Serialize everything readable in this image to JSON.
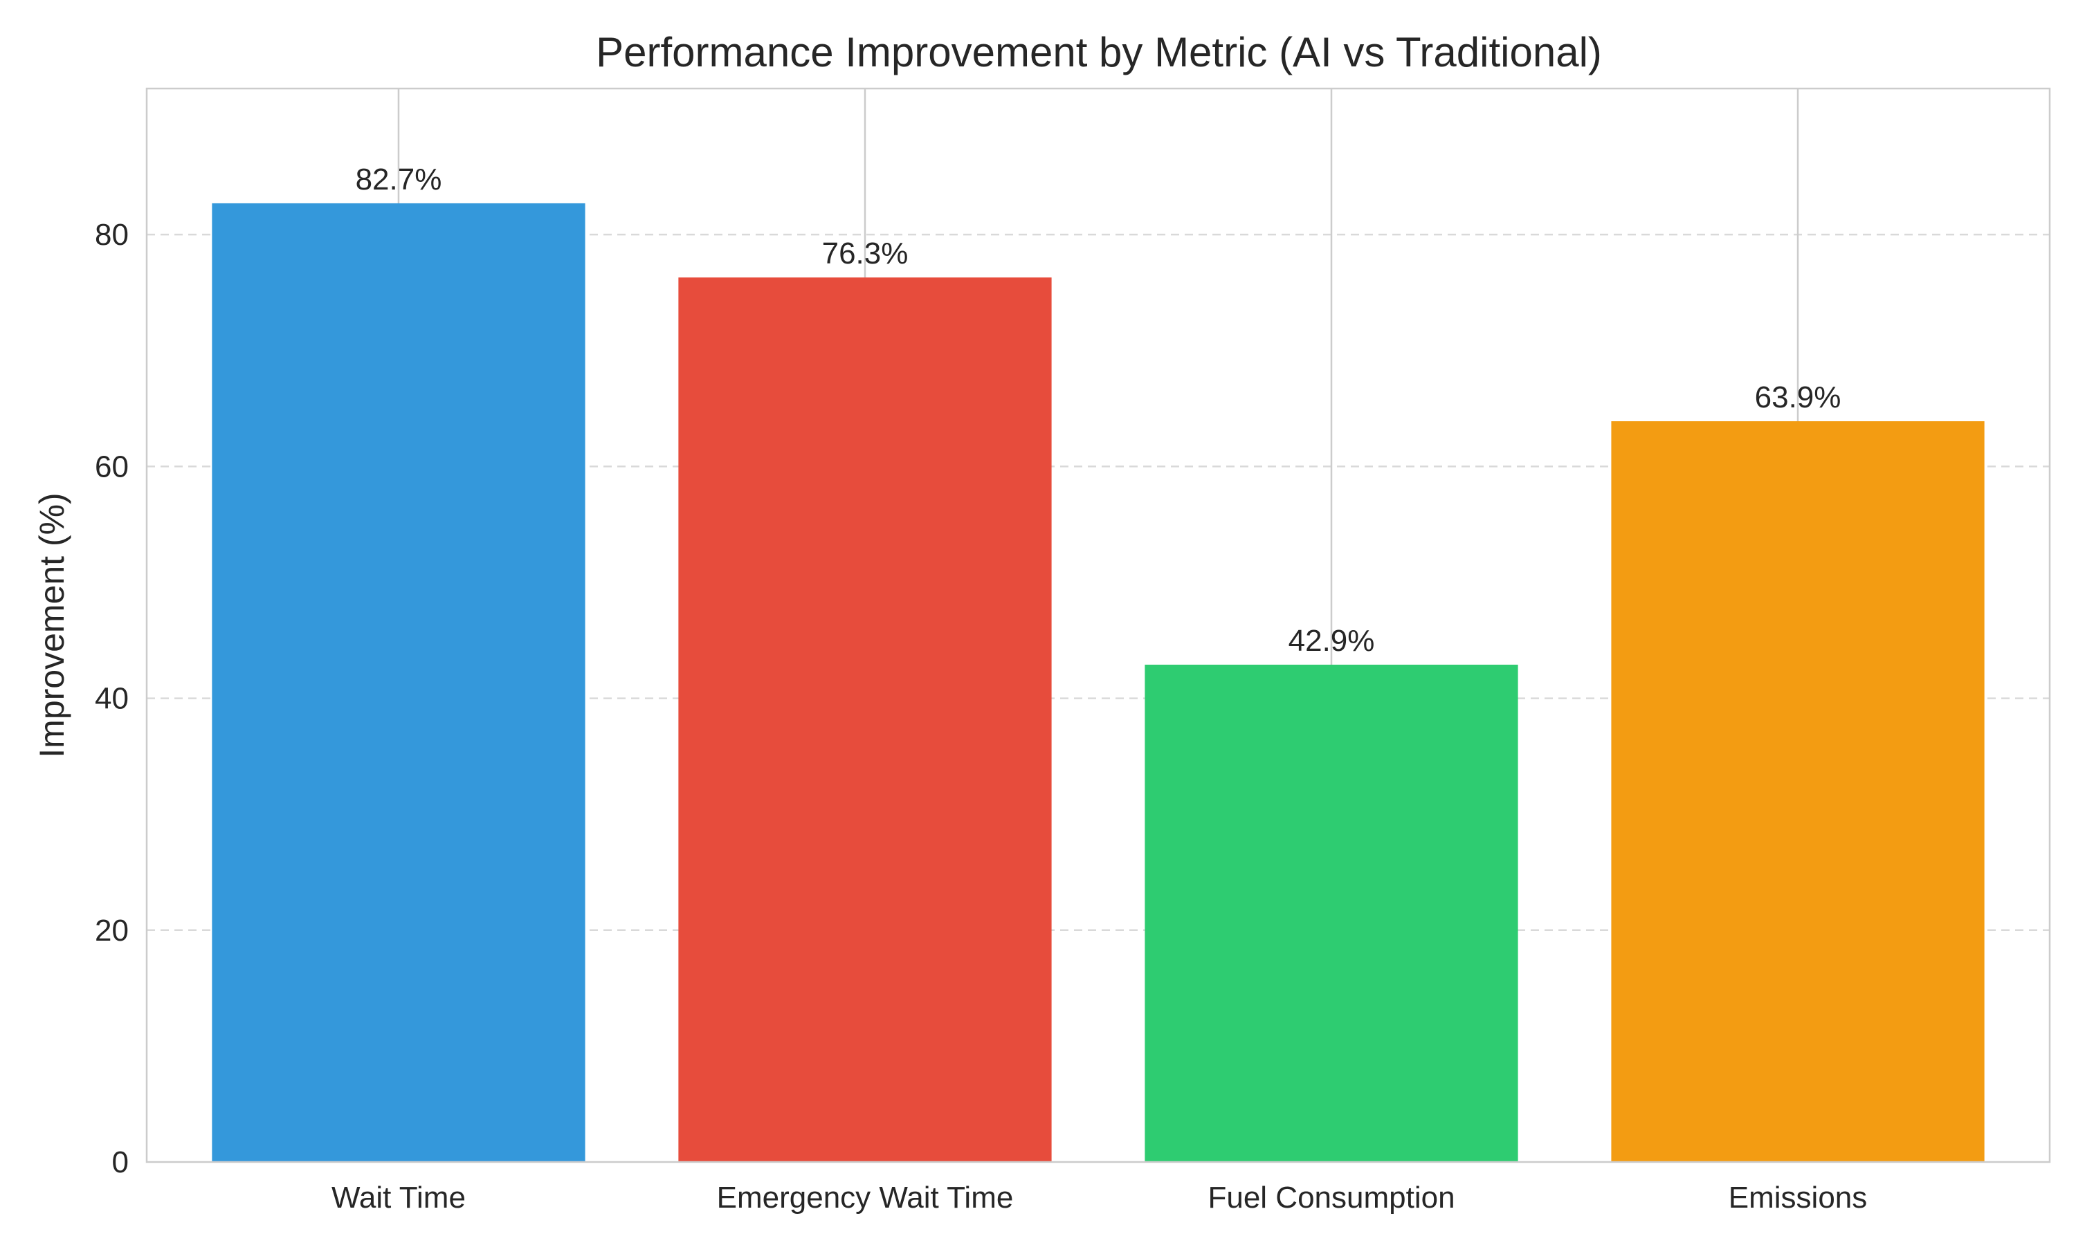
{
  "chart_data": {
    "type": "bar",
    "title": "Performance Improvement by Metric (AI vs Traditional)",
    "xlabel": "",
    "ylabel": "Improvement (%)",
    "categories": [
      "Wait Time",
      "Emergency Wait Time",
      "Fuel Consumption",
      "Emissions"
    ],
    "values": [
      82.7,
      76.3,
      42.9,
      63.9
    ],
    "value_labels": [
      "82.7%",
      "76.3%",
      "42.9%",
      "63.9%"
    ],
    "colors": [
      "#3498db",
      "#e74c3c",
      "#2ecc71",
      "#f39c12"
    ],
    "ylim": [
      0,
      92.6
    ],
    "yticks": [
      0,
      20,
      40,
      60,
      80
    ],
    "grid": true,
    "legend": "none"
  }
}
